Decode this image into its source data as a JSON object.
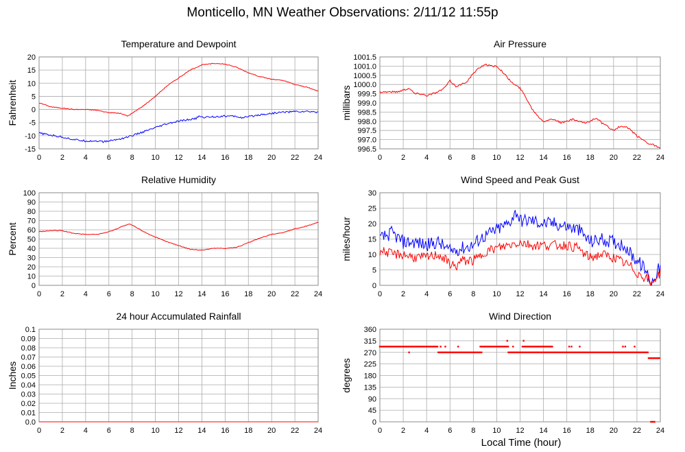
{
  "page": {
    "title": "Monticello, MN Weather Observations: 2/11/12 11:55p",
    "xlabel": "Local Time (hour)"
  },
  "colors": {
    "red": "#ff0000",
    "blue": "#0000ff",
    "grid": "#aaaaaa",
    "frame": "#888888"
  },
  "chart_data": [
    {
      "type": "line",
      "title": "Temperature and Dewpoint",
      "xlabel": "",
      "ylabel": "Fahrenheit",
      "xlim": [
        0,
        24
      ],
      "ylim": [
        -15,
        20
      ],
      "xticks": [
        0,
        2,
        4,
        6,
        8,
        10,
        12,
        14,
        16,
        18,
        20,
        22,
        24
      ],
      "yticks": [
        -15,
        -10,
        -5,
        0,
        5,
        10,
        15,
        20
      ],
      "grid": true,
      "series": [
        {
          "color": "#ff0000",
          "noise": 0.15,
          "x": [
            0,
            0.5,
            1,
            2,
            3,
            4,
            5,
            5.5,
            6,
            6.5,
            7,
            7.3,
            7.6,
            8,
            9,
            10,
            11,
            12,
            13,
            13.5,
            14,
            14.5,
            15,
            15.5,
            16,
            16.5,
            17,
            17.5,
            18,
            19,
            20,
            21,
            22,
            23,
            24
          ],
          "y": [
            2.5,
            1.8,
            1,
            0.5,
            0,
            0,
            -0.3,
            -0.8,
            -1.2,
            -1.3,
            -1.5,
            -2,
            -2.5,
            -1.5,
            1.5,
            5,
            9,
            12,
            15,
            16,
            17,
            17.2,
            17.5,
            17.5,
            17.2,
            16.7,
            16,
            15,
            14,
            12.5,
            11.5,
            11,
            9.5,
            8.5,
            7
          ]
        },
        {
          "color": "#0000ff",
          "noise": 0.35,
          "x": [
            0,
            1,
            2,
            3,
            4,
            5,
            5.5,
            6,
            7,
            8,
            9,
            10,
            11,
            12,
            13,
            13.5,
            13.7,
            14,
            15,
            16,
            17,
            17.5,
            18,
            19,
            20,
            21,
            22,
            23,
            24
          ],
          "y": [
            -9,
            -9.8,
            -10.5,
            -11.5,
            -12,
            -12,
            -12.3,
            -12,
            -11.2,
            -10,
            -8.5,
            -7,
            -5.5,
            -4.5,
            -3.8,
            -3.5,
            -2.5,
            -3,
            -2.8,
            -2.5,
            -2.7,
            -3.2,
            -2.8,
            -2,
            -1.5,
            -1,
            -0.8,
            -0.8,
            -1
          ]
        }
      ]
    },
    {
      "type": "line",
      "title": "Air Pressure",
      "xlabel": "",
      "ylabel": "millibars",
      "xlim": [
        0,
        24
      ],
      "ylim": [
        996.5,
        1001.5
      ],
      "xticks": [
        0,
        2,
        4,
        6,
        8,
        10,
        12,
        14,
        16,
        18,
        20,
        22,
        24
      ],
      "yticks": [
        996.5,
        997.0,
        997.5,
        998.0,
        998.5,
        999.0,
        999.5,
        1000.0,
        1000.5,
        1001.0,
        1001.5
      ],
      "ytick_labels": [
        "996.5",
        "997.0",
        "997.5",
        "998.0",
        "998.5",
        "999.0",
        "999.5",
        "1000.0",
        "1000.5",
        "1001.0",
        "1001.5"
      ],
      "grid": true,
      "series": [
        {
          "color": "#ff0000",
          "noise": 0.05,
          "x": [
            0,
            0.5,
            1,
            1.5,
            2,
            2.5,
            3,
            3.5,
            4,
            4.5,
            5,
            5.5,
            6,
            6.5,
            7,
            7.5,
            8,
            8.5,
            9,
            9.5,
            10,
            10.5,
            11,
            11.5,
            12,
            12.5,
            13,
            13.5,
            14,
            14.5,
            15,
            15.5,
            16,
            16.5,
            17,
            17.5,
            18,
            18.5,
            19,
            19.5,
            20,
            20.5,
            21,
            21.5,
            22,
            22.5,
            23,
            23.5,
            24
          ],
          "y": [
            999.6,
            999.6,
            999.6,
            999.6,
            999.7,
            999.8,
            999.5,
            999.5,
            999.4,
            999.5,
            999.6,
            999.8,
            1000.2,
            999.9,
            1000.0,
            1000.2,
            1000.6,
            1000.9,
            1001.1,
            1001.0,
            1001.0,
            1000.7,
            1000.3,
            1000.0,
            999.8,
            999.3,
            998.7,
            998.3,
            998.0,
            998.1,
            998.1,
            997.9,
            998.0,
            998.1,
            998.0,
            997.9,
            998.0,
            998.2,
            997.9,
            997.7,
            997.5,
            997.7,
            997.7,
            997.5,
            997.2,
            997.0,
            996.8,
            996.7,
            996.5
          ]
        }
      ]
    },
    {
      "type": "line",
      "title": "Relative Humidity",
      "xlabel": "",
      "ylabel": "Percent",
      "xlim": [
        0,
        24
      ],
      "ylim": [
        0,
        100
      ],
      "xticks": [
        0,
        2,
        4,
        6,
        8,
        10,
        12,
        14,
        16,
        18,
        20,
        22,
        24
      ],
      "yticks": [
        0,
        10,
        20,
        30,
        40,
        50,
        60,
        70,
        80,
        90,
        100
      ],
      "grid": true,
      "series": [
        {
          "color": "#ff0000",
          "noise": 0.4,
          "x": [
            0,
            1,
            2,
            3,
            4,
            5,
            6,
            6.5,
            7,
            7.5,
            7.8,
            8,
            9,
            10,
            11,
            12,
            13,
            14,
            15,
            16,
            17,
            18,
            19,
            20,
            21,
            22,
            23,
            24
          ],
          "y": [
            58,
            59,
            59,
            56,
            55,
            55,
            58,
            60,
            63,
            65,
            66,
            65,
            58,
            52,
            47,
            43,
            39,
            38,
            40,
            40,
            41,
            46,
            51,
            55,
            57,
            61,
            64,
            68
          ]
        }
      ]
    },
    {
      "type": "line",
      "title": "Wind Speed and Peak Gust",
      "xlabel": "",
      "ylabel": "miles/hour",
      "xlim": [
        0,
        24
      ],
      "ylim": [
        0,
        30
      ],
      "xticks": [
        0,
        2,
        4,
        6,
        8,
        10,
        12,
        14,
        16,
        18,
        20,
        22,
        24
      ],
      "yticks": [
        0,
        5,
        10,
        15,
        20,
        25,
        30
      ],
      "grid": true,
      "series": [
        {
          "color": "#0000ff",
          "noise": 2.2,
          "x": [
            0,
            0.5,
            1,
            2,
            3,
            4,
            5,
            6,
            7,
            8,
            8.5,
            9,
            10,
            11,
            11.7,
            12,
            13,
            14,
            15,
            16,
            17,
            17.5,
            18,
            19,
            20,
            21,
            21.5,
            22,
            22.5,
            23,
            23.2,
            23.5,
            24
          ],
          "y": [
            15,
            16,
            17,
            14,
            14,
            13,
            14,
            11,
            12,
            13,
            15,
            16,
            18,
            20,
            24,
            21,
            21,
            20,
            20,
            19,
            18,
            16,
            14,
            15,
            14,
            13,
            10,
            8,
            6,
            3,
            0,
            3,
            6
          ]
        },
        {
          "color": "#ff0000",
          "noise": 1.6,
          "x": [
            0,
            0.5,
            1,
            2,
            3,
            4,
            5,
            6,
            6.5,
            7,
            8,
            8.5,
            9,
            10,
            11,
            12,
            13,
            14,
            15,
            16,
            17,
            17.5,
            18,
            19,
            20,
            21,
            21.5,
            22,
            22.5,
            23,
            23.2,
            23.5,
            24
          ],
          "y": [
            11,
            11,
            10,
            10,
            9,
            9,
            10,
            7,
            6,
            8,
            8,
            9,
            11,
            12,
            13,
            14,
            13,
            13,
            13,
            13,
            12,
            10,
            9,
            10,
            9,
            7,
            6,
            4,
            3,
            2,
            0,
            2,
            4
          ]
        }
      ]
    },
    {
      "type": "line",
      "title": "24 hour Accumulated Rainfall",
      "xlabel": "",
      "ylabel": "Inches",
      "xlim": [
        0,
        24
      ],
      "ylim": [
        0,
        0.1
      ],
      "xticks": [
        0,
        2,
        4,
        6,
        8,
        10,
        12,
        14,
        16,
        18,
        20,
        22,
        24
      ],
      "yticks": [
        0,
        0.01,
        0.02,
        0.03,
        0.04,
        0.05,
        0.06,
        0.07,
        0.08,
        0.09,
        0.1
      ],
      "ytick_labels": [
        "0.0",
        "0.01",
        "0.02",
        "0.03",
        "0.04",
        "0.05",
        "0.06",
        "0.07",
        "0.08",
        "0.09",
        "0.1"
      ],
      "grid": true,
      "series": [
        {
          "color": "#ff0000",
          "noise": 0,
          "x": [
            0,
            24
          ],
          "y": [
            0,
            0
          ]
        }
      ]
    },
    {
      "type": "scatter",
      "title": "Wind Direction",
      "xlabel": "Local Time (hour)",
      "ylabel": "degrees",
      "xlim": [
        0,
        24
      ],
      "ylim": [
        0,
        360
      ],
      "xticks": [
        0,
        2,
        4,
        6,
        8,
        10,
        12,
        14,
        16,
        18,
        20,
        22,
        24
      ],
      "yticks": [
        0,
        45,
        90,
        135,
        180,
        225,
        270,
        315,
        360
      ],
      "grid": true,
      "series": [
        {
          "color": "#ff0000",
          "segments": [
            {
              "x0": 0,
              "x1": 5.0,
              "y": 292.5
            },
            {
              "x0": 5.0,
              "x1": 8.6,
              "y": 270
            },
            {
              "x0": 8.6,
              "x1": 11.0,
              "y": 292.5
            },
            {
              "x0": 11.0,
              "x1": 14.0,
              "y": 270
            },
            {
              "x0": 12.2,
              "x1": 14.8,
              "y": 292.5
            },
            {
              "x0": 14.0,
              "x1": 23.0,
              "y": 270
            },
            {
              "x0": 23.0,
              "x1": 23.5,
              "y": 247.5
            },
            {
              "x0": 23.5,
              "x1": 24.0,
              "y": 247.5
            }
          ],
          "points": [
            [
              2.5,
              270
            ],
            [
              5.2,
              292.5
            ],
            [
              5.6,
              292.5
            ],
            [
              6.7,
              292.5
            ],
            [
              8.7,
              270
            ],
            [
              10.9,
              315
            ],
            [
              11.4,
              292.5
            ],
            [
              12.3,
              315
            ],
            [
              13.5,
              270
            ],
            [
              13.9,
              292.5
            ],
            [
              16.2,
              292.5
            ],
            [
              16.4,
              292.5
            ],
            [
              17.1,
              292.5
            ],
            [
              20.8,
              292.5
            ],
            [
              21.0,
              292.5
            ],
            [
              21.8,
              292.5
            ],
            [
              23.2,
              0
            ],
            [
              23.3,
              0
            ],
            [
              23.4,
              0
            ],
            [
              23.5,
              0
            ]
          ]
        }
      ]
    }
  ]
}
